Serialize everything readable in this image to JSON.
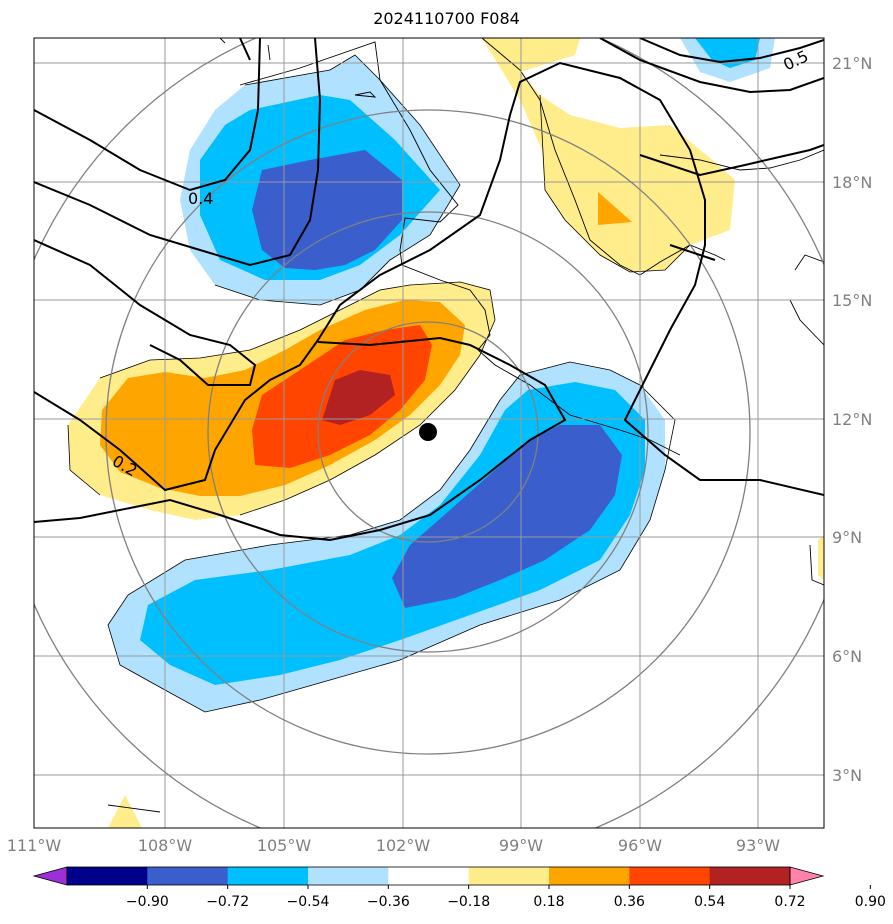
{
  "title": "2024110700 F084",
  "map": {
    "lon_range": [
      -111,
      -91
    ],
    "lat_range": [
      1.6,
      21.6
    ],
    "lon_ticks": [
      "111°W",
      "108°W",
      "105°W",
      "102°W",
      "99°W",
      "96°W",
      "93°W"
    ],
    "lat_ticks": [
      "21°N",
      "18°N",
      "15°N",
      "12°N",
      "9°N",
      "6°N",
      "3°N"
    ],
    "storm_center": {
      "lon": -101.3,
      "lat": 11.7
    },
    "contour_labels": [
      "0.4",
      "0.2",
      "0.5"
    ],
    "grid": true
  },
  "colorbar": {
    "ticks": [
      "−0.90",
      "−0.72",
      "−0.54",
      "−0.36",
      "−0.18",
      "0.18",
      "0.36",
      "0.54",
      "0.72",
      "0.90"
    ],
    "colors": [
      "#9b30d8",
      "#00008b",
      "#3a5fcd",
      "#00bfff",
      "#b0e2ff",
      "#ffffff",
      "#ffec8b",
      "#ffa500",
      "#ff4500",
      "#b22222",
      "#ff82ab"
    ]
  },
  "fill_colors": {
    "neg_light": "#b0e2ff",
    "neg_mid": "#00bfff",
    "neg_dark": "#3a5fcd",
    "pos_light": "#ffec8b",
    "pos_mid": "#ffa500",
    "pos_dark": "#ff4500",
    "pos_max": "#b22222"
  }
}
